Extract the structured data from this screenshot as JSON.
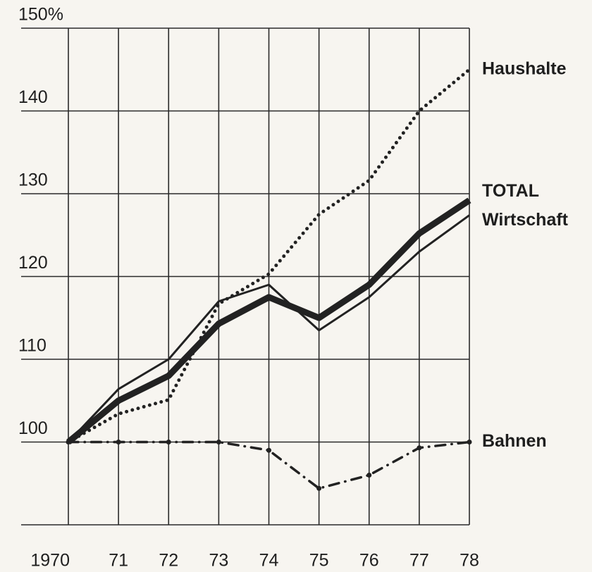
{
  "chart_data": {
    "type": "line",
    "categories": [
      "1970",
      "71",
      "72",
      "73",
      "74",
      "75",
      "76",
      "77",
      "78"
    ],
    "series": [
      {
        "name": "Haushalte",
        "color": "#222222",
        "style": "dotted",
        "values": [
          100,
          103.4,
          105.1,
          116.7,
          120.3,
          127.5,
          131.6,
          140,
          145
        ]
      },
      {
        "name": "TOTAL",
        "color": "#222222",
        "style": "thick",
        "values": [
          100,
          105,
          108,
          114.3,
          117.5,
          115,
          119,
          125.2,
          129.2
        ]
      },
      {
        "name": "Wirtschaft",
        "color": "#222222",
        "style": "solid",
        "values": [
          100,
          106.4,
          110,
          117,
          119,
          113.5,
          117.5,
          123,
          127.4
        ]
      },
      {
        "name": "Bahnen",
        "color": "#222222",
        "style": "dashdot",
        "values": [
          100,
          100,
          100,
          100,
          99,
          94.4,
          96,
          99.3,
          100
        ]
      }
    ],
    "ylim": [
      90,
      150
    ],
    "yticks": [
      {
        "value": 150,
        "label": "150%"
      },
      140,
      130,
      120,
      110,
      100
    ],
    "grid": true
  }
}
